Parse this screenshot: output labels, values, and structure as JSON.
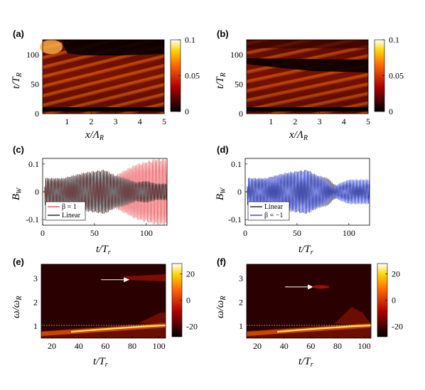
{
  "chart_data": [
    {
      "type": "heatmap",
      "panel_label": "(a)",
      "xlabel": "x/Λ_R",
      "ylabel": "t/T_R",
      "xlim": [
        0,
        5
      ],
      "ylim": [
        0,
        125
      ],
      "xticks": [
        "1",
        "2",
        "3",
        "4",
        "5"
      ],
      "yticks": [
        "0",
        "50",
        "100"
      ],
      "colorbar": {
        "range": [
          0,
          0.1
        ],
        "ticks": [
          "0",
          "0.05",
          "0.1"
        ],
        "colormap": "hot"
      },
      "description_values": {
        "wave_amplitude_max": 0.1
      }
    },
    {
      "type": "heatmap",
      "panel_label": "(b)",
      "xlabel": "x/Λ_R",
      "ylabel": "t/T_R",
      "xlim": [
        0,
        5
      ],
      "ylim": [
        0,
        125
      ],
      "xticks": [
        "1",
        "2",
        "3",
        "4",
        "5"
      ],
      "yticks": [
        "0",
        "50",
        "100"
      ],
      "colorbar": {
        "range": [
          0,
          0.1
        ],
        "ticks": [
          "0",
          "0.05",
          "0.1"
        ],
        "colormap": "hot"
      }
    },
    {
      "type": "line",
      "panel_label": "(c)",
      "xlabel": "t/T_r",
      "ylabel": "B_W",
      "xlim": [
        0,
        120
      ],
      "ylim": [
        -0.12,
        0.12
      ],
      "xticks": [
        "0",
        "50",
        "100"
      ],
      "yticks": [
        "0.1",
        "0",
        "-0.1"
      ],
      "series": [
        {
          "name": "β = 1",
          "color": "#e8393f",
          "envelope": {
            "t": [
              5,
              20,
              40,
              60,
              70,
              80,
              90,
              100,
              110,
              118
            ],
            "amp": [
              0.05,
              0.05,
              0.07,
              0.08,
              0.06,
              0.08,
              0.1,
              0.11,
              0.12,
              0.12
            ]
          }
        },
        {
          "name": "Linear",
          "color": "#000000",
          "envelope": {
            "t": [
              5,
              20,
              40,
              60,
              70,
              80,
              90,
              100,
              110,
              118
            ],
            "amp": [
              0.05,
              0.05,
              0.07,
              0.08,
              0.06,
              0.05,
              0.035,
              0.04,
              0.03,
              0.03
            ]
          }
        }
      ],
      "legend": "bottom-left"
    },
    {
      "type": "line",
      "panel_label": "(d)",
      "xlabel": "t/T_r",
      "ylabel": "B_W",
      "xlim": [
        0,
        120
      ],
      "ylim": [
        -0.12,
        0.12
      ],
      "xticks": [
        "0",
        "50",
        "100"
      ],
      "yticks": [
        "0.1",
        "0",
        "-0.1"
      ],
      "series": [
        {
          "name": "Linear",
          "color": "#000000",
          "envelope": {
            "t": [
              5,
              20,
              40,
              60,
              70,
              80,
              85,
              90,
              100,
              110,
              118
            ],
            "amp": [
              0.05,
              0.05,
              0.07,
              0.08,
              0.06,
              0.05,
              0.03,
              0.02,
              0.035,
              0.03,
              0.03
            ]
          }
        },
        {
          "name": "β = −1",
          "color": "#1a2fd6",
          "envelope": {
            "t": [
              5,
              20,
              40,
              60,
              70,
              80,
              85,
              90,
              100,
              110,
              118
            ],
            "amp": [
              0.05,
              0.05,
              0.07,
              0.08,
              0.06,
              0.04,
              0.015,
              0.03,
              0.045,
              0.045,
              0.045
            ]
          }
        }
      ],
      "legend": "bottom-left"
    },
    {
      "type": "heatmap",
      "panel_label": "(e)",
      "xlabel": "t/T_r",
      "ylabel": "ω/ω_R",
      "xlim": [
        12,
        105
      ],
      "ylim": [
        0.5,
        3.6
      ],
      "xticks": [
        "20",
        "40",
        "60",
        "80",
        "100"
      ],
      "yticks": [
        "1",
        "2",
        "3"
      ],
      "colorbar": {
        "range": [
          -28,
          28
        ],
        "ticks": [
          "20",
          "0",
          "-20"
        ],
        "colormap": "hot"
      },
      "annotation": {
        "type": "arrow",
        "points_to": {
          "t": 78,
          "omega": 2.95
        }
      }
    },
    {
      "type": "heatmap",
      "panel_label": "(f)",
      "xlabel": "t/T_r",
      "ylabel": "ω/ω_R",
      "xlim": [
        12,
        105
      ],
      "ylim": [
        0.5,
        3.6
      ],
      "xticks": [
        "20",
        "40",
        "60",
        "80",
        "100"
      ],
      "yticks": [
        "1",
        "2",
        "3"
      ],
      "colorbar": {
        "range": [
          -28,
          28
        ],
        "ticks": [
          "20",
          "0",
          "-20"
        ],
        "colormap": "hot"
      },
      "annotation": {
        "type": "arrow",
        "points_to": {
          "t": 62,
          "omega": 2.65
        }
      }
    }
  ]
}
